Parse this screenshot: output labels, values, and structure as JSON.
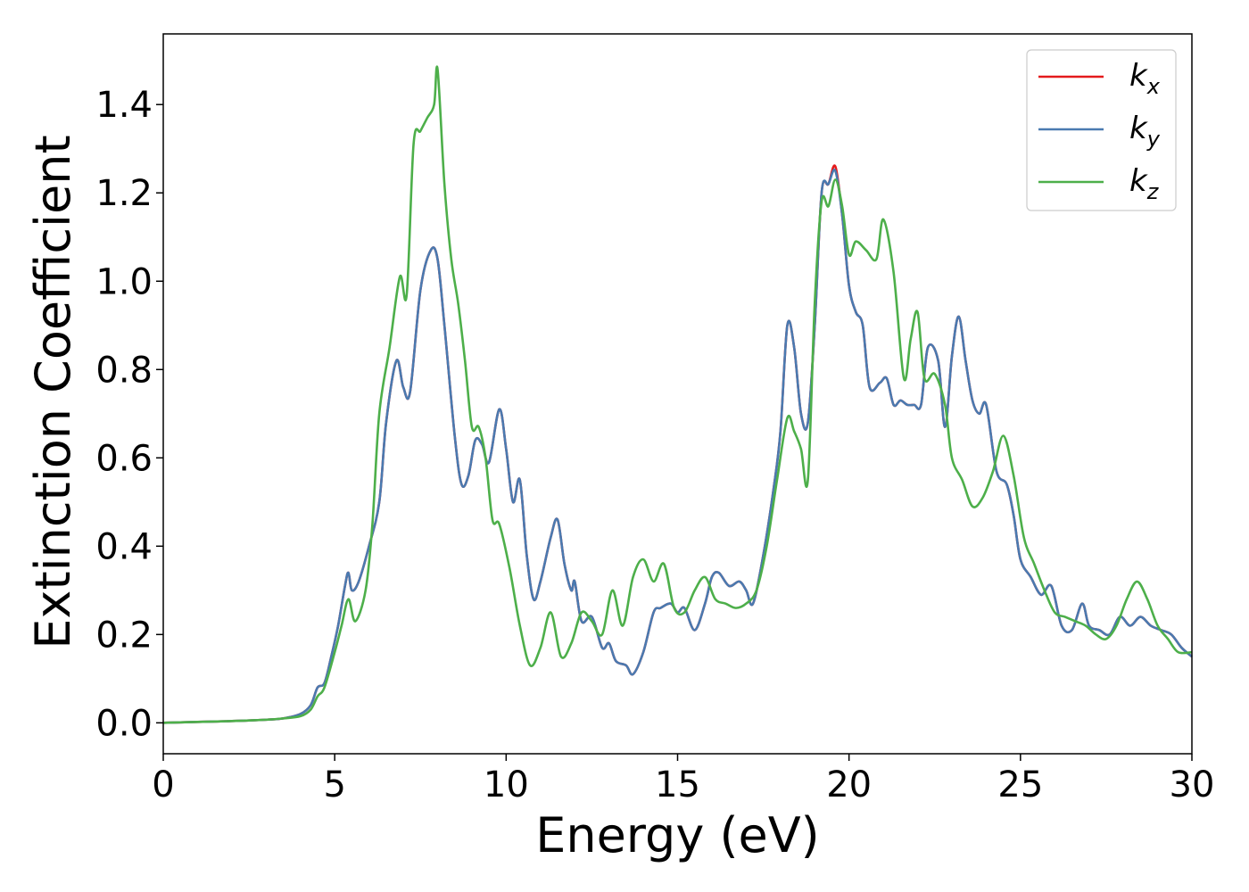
{
  "chart_data": {
    "type": "line",
    "xlabel": "Energy (eV)",
    "ylabel": "Extinction Coefficient",
    "xlim": [
      0,
      30
    ],
    "ylim": [
      -0.07,
      1.56
    ],
    "xticks": [
      0,
      5,
      10,
      15,
      20,
      25,
      30
    ],
    "yticks": [
      0.0,
      0.2,
      0.4,
      0.6,
      0.8,
      1.0,
      1.2,
      1.4
    ],
    "grid": false,
    "legend_position": "top-right",
    "series": [
      {
        "name": "k_x",
        "label_base": "k",
        "label_sub": "x",
        "color": "#e41a1c",
        "x": [
          0,
          1,
          2,
          3,
          3.5,
          4,
          4.3,
          4.5,
          4.7,
          4.9,
          5.1,
          5.3,
          5.4,
          5.5,
          5.7,
          6.0,
          6.3,
          6.5,
          6.8,
          7.0,
          7.2,
          7.5,
          7.8,
          8.0,
          8.2,
          8.5,
          8.7,
          8.9,
          9.1,
          9.3,
          9.5,
          9.8,
          10.0,
          10.2,
          10.4,
          10.6,
          10.8,
          11.0,
          11.3,
          11.5,
          11.7,
          11.9,
          12.0,
          12.2,
          12.5,
          12.8,
          13.0,
          13.2,
          13.5,
          13.7,
          14.0,
          14.3,
          14.5,
          14.8,
          15.0,
          15.2,
          15.5,
          15.8,
          16.0,
          16.2,
          16.5,
          16.8,
          17.0,
          17.2,
          17.5,
          17.8,
          18.0,
          18.2,
          18.4,
          18.6,
          18.8,
          19.0,
          19.2,
          19.4,
          19.6,
          19.8,
          20.0,
          20.2,
          20.4,
          20.6,
          20.9,
          21.1,
          21.3,
          21.5,
          21.7,
          21.9,
          22.1,
          22.3,
          22.6,
          22.8,
          23.0,
          23.2,
          23.4,
          23.6,
          23.8,
          24.0,
          24.3,
          24.6,
          24.8,
          25.0,
          25.3,
          25.6,
          25.9,
          26.2,
          26.5,
          26.8,
          27.0,
          27.3,
          27.6,
          27.9,
          28.2,
          28.5,
          28.8,
          29.1,
          29.4,
          29.7,
          30.0
        ],
        "values": [
          0.0,
          0.002,
          0.004,
          0.007,
          0.01,
          0.02,
          0.04,
          0.08,
          0.09,
          0.15,
          0.22,
          0.31,
          0.34,
          0.3,
          0.32,
          0.4,
          0.5,
          0.68,
          0.82,
          0.76,
          0.75,
          0.98,
          1.07,
          1.05,
          0.9,
          0.65,
          0.54,
          0.56,
          0.64,
          0.63,
          0.59,
          0.71,
          0.62,
          0.5,
          0.55,
          0.38,
          0.28,
          0.32,
          0.42,
          0.46,
          0.36,
          0.3,
          0.32,
          0.23,
          0.24,
          0.17,
          0.18,
          0.14,
          0.13,
          0.11,
          0.16,
          0.25,
          0.26,
          0.27,
          0.25,
          0.26,
          0.21,
          0.27,
          0.33,
          0.34,
          0.31,
          0.32,
          0.3,
          0.27,
          0.38,
          0.53,
          0.66,
          0.9,
          0.85,
          0.7,
          0.68,
          0.9,
          1.2,
          1.22,
          1.26,
          1.15,
          0.99,
          0.93,
          0.9,
          0.76,
          0.77,
          0.78,
          0.72,
          0.73,
          0.72,
          0.72,
          0.72,
          0.85,
          0.82,
          0.67,
          0.83,
          0.92,
          0.82,
          0.73,
          0.7,
          0.72,
          0.57,
          0.54,
          0.47,
          0.37,
          0.33,
          0.29,
          0.31,
          0.22,
          0.21,
          0.27,
          0.22,
          0.21,
          0.2,
          0.24,
          0.22,
          0.24,
          0.22,
          0.21,
          0.2,
          0.17,
          0.15
        ]
      },
      {
        "name": "k_y",
        "label_base": "k",
        "label_sub": "y",
        "color": "#4a7ab0",
        "x": [
          0,
          1,
          2,
          3,
          3.5,
          4,
          4.3,
          4.5,
          4.7,
          4.9,
          5.1,
          5.3,
          5.4,
          5.5,
          5.7,
          6.0,
          6.3,
          6.5,
          6.8,
          7.0,
          7.2,
          7.5,
          7.8,
          8.0,
          8.2,
          8.5,
          8.7,
          8.9,
          9.1,
          9.3,
          9.5,
          9.8,
          10.0,
          10.2,
          10.4,
          10.6,
          10.8,
          11.0,
          11.3,
          11.5,
          11.7,
          11.9,
          12.0,
          12.2,
          12.5,
          12.8,
          13.0,
          13.2,
          13.5,
          13.7,
          14.0,
          14.3,
          14.5,
          14.8,
          15.0,
          15.2,
          15.5,
          15.8,
          16.0,
          16.2,
          16.5,
          16.8,
          17.0,
          17.2,
          17.5,
          17.8,
          18.0,
          18.2,
          18.4,
          18.6,
          18.8,
          19.0,
          19.2,
          19.4,
          19.6,
          19.8,
          20.0,
          20.2,
          20.4,
          20.6,
          20.9,
          21.1,
          21.3,
          21.5,
          21.7,
          21.9,
          22.1,
          22.3,
          22.6,
          22.8,
          23.0,
          23.2,
          23.4,
          23.6,
          23.8,
          24.0,
          24.3,
          24.6,
          24.8,
          25.0,
          25.3,
          25.6,
          25.9,
          26.2,
          26.5,
          26.8,
          27.0,
          27.3,
          27.6,
          27.9,
          28.2,
          28.5,
          28.8,
          29.1,
          29.4,
          29.7,
          30.0
        ],
        "values": [
          0.0,
          0.002,
          0.004,
          0.007,
          0.01,
          0.02,
          0.04,
          0.08,
          0.09,
          0.15,
          0.22,
          0.31,
          0.34,
          0.3,
          0.32,
          0.4,
          0.5,
          0.68,
          0.82,
          0.76,
          0.75,
          0.98,
          1.07,
          1.05,
          0.9,
          0.65,
          0.54,
          0.56,
          0.64,
          0.63,
          0.59,
          0.71,
          0.62,
          0.5,
          0.55,
          0.38,
          0.28,
          0.32,
          0.42,
          0.46,
          0.36,
          0.3,
          0.32,
          0.23,
          0.24,
          0.17,
          0.18,
          0.14,
          0.13,
          0.11,
          0.16,
          0.25,
          0.26,
          0.27,
          0.25,
          0.26,
          0.21,
          0.27,
          0.33,
          0.34,
          0.31,
          0.32,
          0.3,
          0.27,
          0.38,
          0.53,
          0.66,
          0.9,
          0.85,
          0.7,
          0.68,
          0.9,
          1.2,
          1.22,
          1.25,
          1.15,
          0.99,
          0.93,
          0.9,
          0.76,
          0.77,
          0.78,
          0.72,
          0.73,
          0.72,
          0.72,
          0.72,
          0.85,
          0.82,
          0.67,
          0.83,
          0.92,
          0.82,
          0.73,
          0.7,
          0.72,
          0.57,
          0.54,
          0.47,
          0.37,
          0.33,
          0.29,
          0.31,
          0.22,
          0.21,
          0.27,
          0.22,
          0.21,
          0.2,
          0.24,
          0.22,
          0.24,
          0.22,
          0.21,
          0.2,
          0.17,
          0.15
        ]
      },
      {
        "name": "k_z",
        "label_base": "k",
        "label_sub": "z",
        "color": "#4daf4a",
        "x": [
          0,
          1,
          2,
          3,
          3.5,
          4,
          4.3,
          4.5,
          4.7,
          5.0,
          5.2,
          5.4,
          5.6,
          5.9,
          6.1,
          6.3,
          6.6,
          6.9,
          7.1,
          7.3,
          7.5,
          7.7,
          7.9,
          8.0,
          8.2,
          8.4,
          8.6,
          8.8,
          9.0,
          9.2,
          9.4,
          9.6,
          9.8,
          10.1,
          10.4,
          10.7,
          11.0,
          11.3,
          11.6,
          11.9,
          12.2,
          12.5,
          12.8,
          13.1,
          13.4,
          13.7,
          14.0,
          14.3,
          14.6,
          14.9,
          15.2,
          15.5,
          15.8,
          16.1,
          16.4,
          16.7,
          17.0,
          17.3,
          17.6,
          17.9,
          18.2,
          18.4,
          18.6,
          18.8,
          19.0,
          19.2,
          19.4,
          19.6,
          19.8,
          20.0,
          20.2,
          20.5,
          20.8,
          21.0,
          21.3,
          21.6,
          21.8,
          22.0,
          22.2,
          22.5,
          22.8,
          23.0,
          23.3,
          23.6,
          23.9,
          24.2,
          24.5,
          24.8,
          25.1,
          25.4,
          25.7,
          26.0,
          26.3,
          26.6,
          26.9,
          27.2,
          27.5,
          27.8,
          28.1,
          28.4,
          28.7,
          29.0,
          29.3,
          29.6,
          30.0
        ],
        "values": [
          0.0,
          0.002,
          0.004,
          0.007,
          0.01,
          0.015,
          0.03,
          0.06,
          0.08,
          0.16,
          0.22,
          0.28,
          0.23,
          0.3,
          0.45,
          0.7,
          0.85,
          1.01,
          0.97,
          1.31,
          1.34,
          1.37,
          1.4,
          1.48,
          1.22,
          1.05,
          0.95,
          0.82,
          0.67,
          0.67,
          0.6,
          0.46,
          0.45,
          0.35,
          0.22,
          0.13,
          0.17,
          0.25,
          0.15,
          0.18,
          0.25,
          0.23,
          0.2,
          0.3,
          0.22,
          0.33,
          0.37,
          0.32,
          0.36,
          0.26,
          0.25,
          0.3,
          0.33,
          0.28,
          0.27,
          0.26,
          0.27,
          0.3,
          0.4,
          0.55,
          0.69,
          0.66,
          0.62,
          0.55,
          0.95,
          1.18,
          1.17,
          1.23,
          1.17,
          1.06,
          1.09,
          1.07,
          1.05,
          1.14,
          1.02,
          0.78,
          0.87,
          0.93,
          0.78,
          0.79,
          0.72,
          0.6,
          0.55,
          0.49,
          0.51,
          0.57,
          0.65,
          0.56,
          0.42,
          0.36,
          0.3,
          0.25,
          0.24,
          0.23,
          0.22,
          0.2,
          0.19,
          0.22,
          0.28,
          0.32,
          0.28,
          0.22,
          0.19,
          0.16,
          0.16
        ]
      }
    ]
  }
}
